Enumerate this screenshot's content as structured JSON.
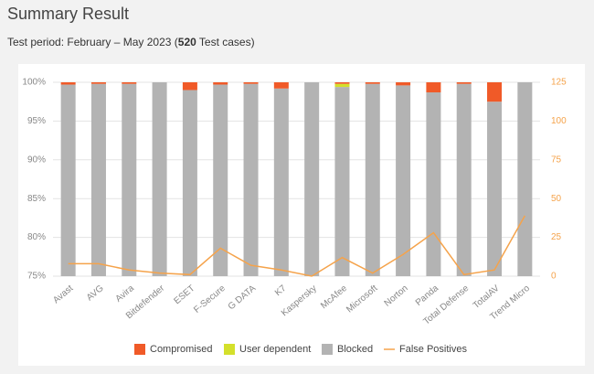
{
  "chart_data": {
    "type": "bar",
    "stacked": true,
    "title": "Summary Result",
    "subtitle": {
      "before": "Test period: February – May 2023 (",
      "bold": "520",
      "after": " Test cases)"
    },
    "categories": [
      "Avast",
      "AVG",
      "Avira",
      "Bitdefender",
      "ESET",
      "F-Secure",
      "G DATA",
      "K7",
      "Kaspersky",
      "McAfee",
      "Microsoft",
      "Norton",
      "Panda",
      "Total Defense",
      "TotalAV",
      "Trend Micro"
    ],
    "series": [
      {
        "name": "Compromised",
        "type": "bar",
        "color": "#f05a28",
        "values": [
          0.3,
          0.2,
          0.2,
          0,
          1.0,
          0.3,
          0.2,
          0.8,
          0,
          0.2,
          0.2,
          0.4,
          1.3,
          0.2,
          2.5,
          0
        ]
      },
      {
        "name": "User dependent",
        "type": "bar",
        "color": "#d4e02b",
        "values": [
          0,
          0,
          0,
          0,
          0,
          0,
          0,
          0,
          0,
          0.4,
          0,
          0,
          0,
          0,
          0,
          0
        ]
      },
      {
        "name": "Blocked",
        "type": "bar",
        "color": "#b3b3b3",
        "values": [
          99.7,
          99.8,
          99.8,
          100,
          99.0,
          99.7,
          99.8,
          99.2,
          100,
          99.4,
          99.8,
          99.6,
          98.7,
          99.8,
          97.5,
          100
        ]
      },
      {
        "name": "False Positives",
        "type": "line",
        "axis": "y2",
        "color": "#f5a34b",
        "values": [
          8,
          8,
          4,
          2,
          1,
          18,
          7,
          4,
          0,
          12,
          2,
          14,
          28,
          1,
          4,
          39
        ]
      }
    ],
    "ylim": [
      75,
      100
    ],
    "yticks": [
      {
        "value": 75,
        "label": "75%"
      },
      {
        "value": 80,
        "label": "80%"
      },
      {
        "value": 85,
        "label": "85%"
      },
      {
        "value": 90,
        "label": "90%"
      },
      {
        "value": 95,
        "label": "95%"
      },
      {
        "value": 100,
        "label": "100%"
      }
    ],
    "y2lim": [
      0,
      125
    ],
    "y2ticks": [
      0,
      25,
      50,
      75,
      100,
      125
    ],
    "grid": true,
    "legend": "bottom"
  }
}
